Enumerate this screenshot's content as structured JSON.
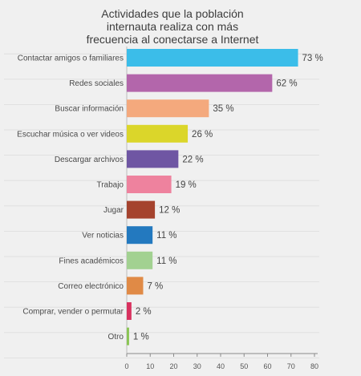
{
  "chart_data": {
    "type": "bar",
    "orientation": "horizontal",
    "title_lines": [
      "Actividades que la población",
      "internauta realiza con más",
      "frecuencia al conectarse a Internet"
    ],
    "categories": [
      "Contactar amigos o familiares",
      "Redes sociales",
      "Buscar información",
      "Escuchar música o ver videos",
      "Descargar archivos",
      "Trabajo",
      "Jugar",
      "Ver noticias",
      "Fines académicos",
      "Correo electrónico",
      "Comprar, vender o permutar",
      "Otro"
    ],
    "values": [
      73,
      62,
      35,
      26,
      22,
      19,
      12,
      11,
      11,
      7,
      2,
      1
    ],
    "value_labels": [
      "73 %",
      "62 %",
      "35 %",
      "26 %",
      "22 %",
      "19 %",
      "12 %",
      "11 %",
      "11 %",
      "7 %",
      "2 %",
      "1 %"
    ],
    "colors": [
      "#3bbde9",
      "#b366ab",
      "#f4a97d",
      "#dbd62a",
      "#6f56a3",
      "#ee829e",
      "#a5432e",
      "#2379bf",
      "#a2d191",
      "#e08a46",
      "#d8325f",
      "#8ac554"
    ],
    "xlim": [
      0,
      80
    ],
    "xticks": [
      "0",
      "10",
      "20",
      "30",
      "40",
      "50",
      "60",
      "70",
      "80"
    ],
    "grid": true
  }
}
